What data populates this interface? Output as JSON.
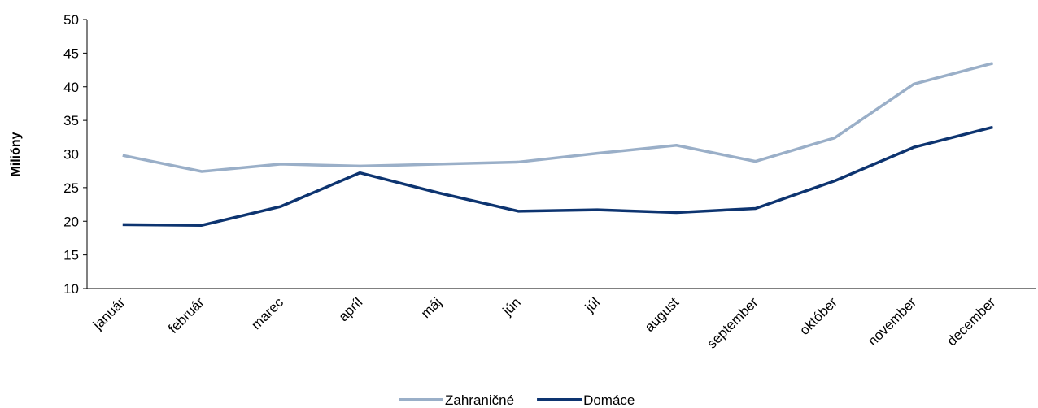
{
  "chart_data": {
    "type": "line",
    "y_label": "Milióny",
    "categories": [
      "január",
      "február",
      "marec",
      "apríl",
      "máj",
      "jún",
      "júl",
      "august",
      "september",
      "október",
      "november",
      "december"
    ],
    "series": [
      {
        "name": "Zahraničné",
        "color": "#9aafc8",
        "values": [
          29.8,
          27.4,
          28.5,
          28.2,
          28.5,
          28.8,
          30.1,
          31.3,
          28.9,
          32.4,
          40.4,
          43.5
        ]
      },
      {
        "name": "Domáce",
        "color": "#0d3470",
        "values": [
          19.5,
          19.4,
          22.2,
          27.2,
          24.2,
          21.5,
          21.7,
          21.3,
          21.9,
          26.0,
          31.0,
          34.0
        ]
      }
    ],
    "ylim": [
      10,
      50
    ],
    "yticks": [
      10,
      15,
      20,
      25,
      30,
      35,
      40,
      45,
      50
    ],
    "grid": false,
    "legend": "bottom"
  }
}
